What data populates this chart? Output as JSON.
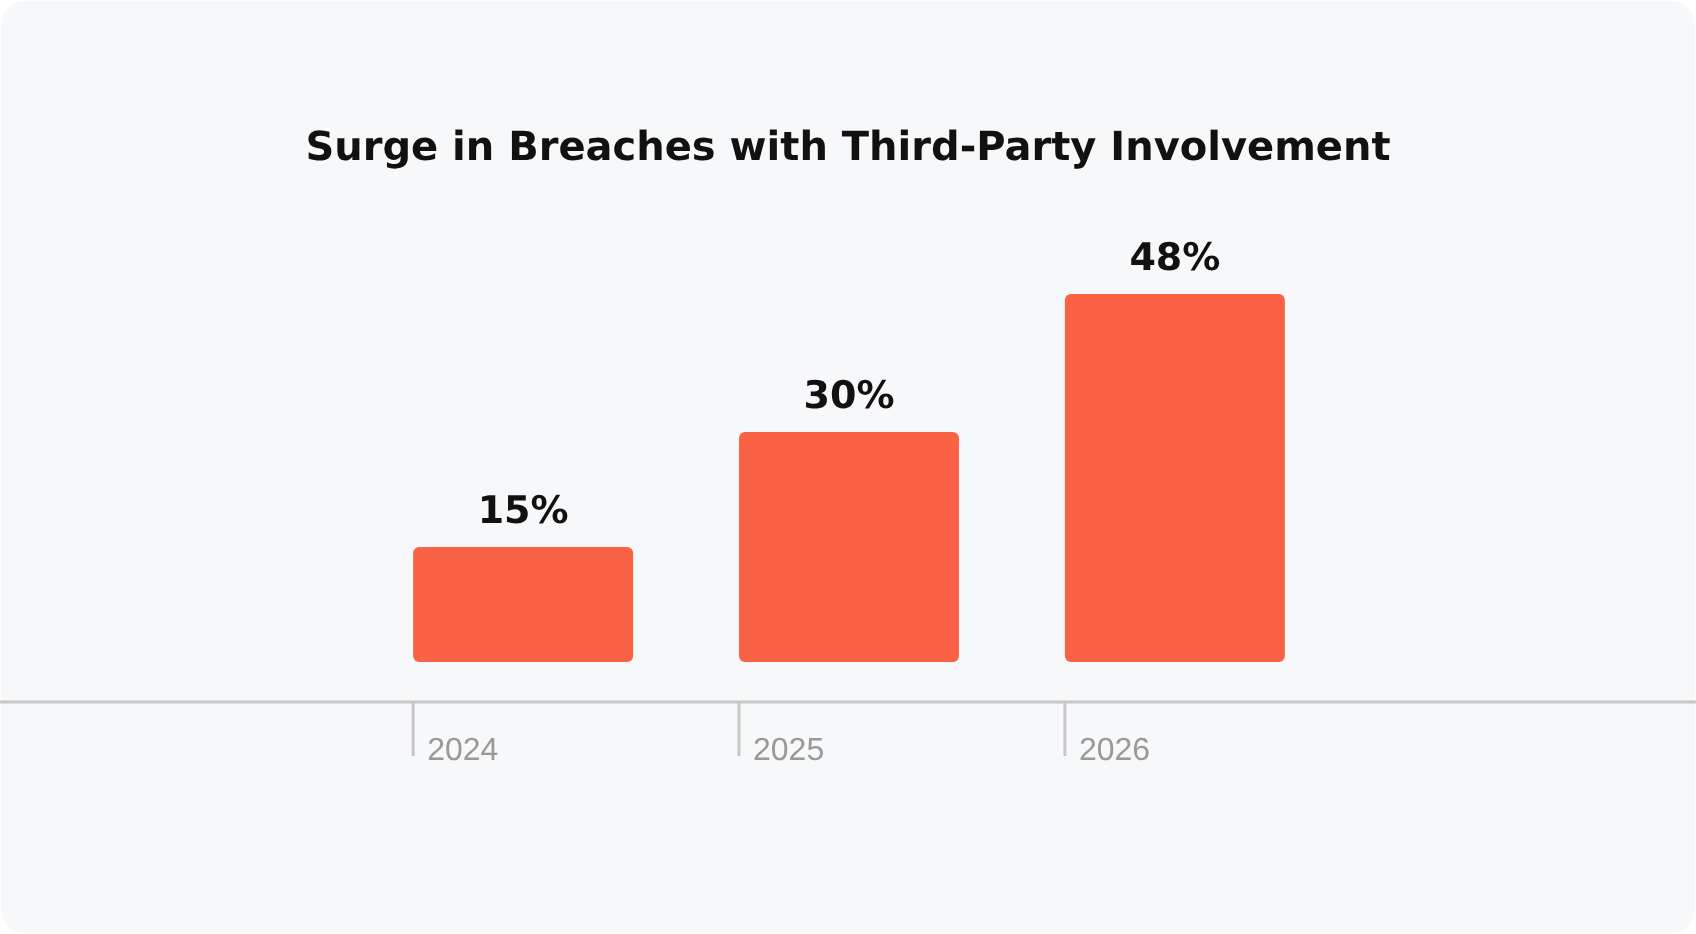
{
  "chart_data": {
    "type": "bar",
    "title": "Surge in Breaches with Third-Party Involvement",
    "categories": [
      "2024",
      "2025",
      "2026"
    ],
    "values": [
      15,
      30,
      48
    ],
    "color": "#f96245",
    "value_labels": [
      "15%",
      "30%",
      "48%"
    ]
  }
}
